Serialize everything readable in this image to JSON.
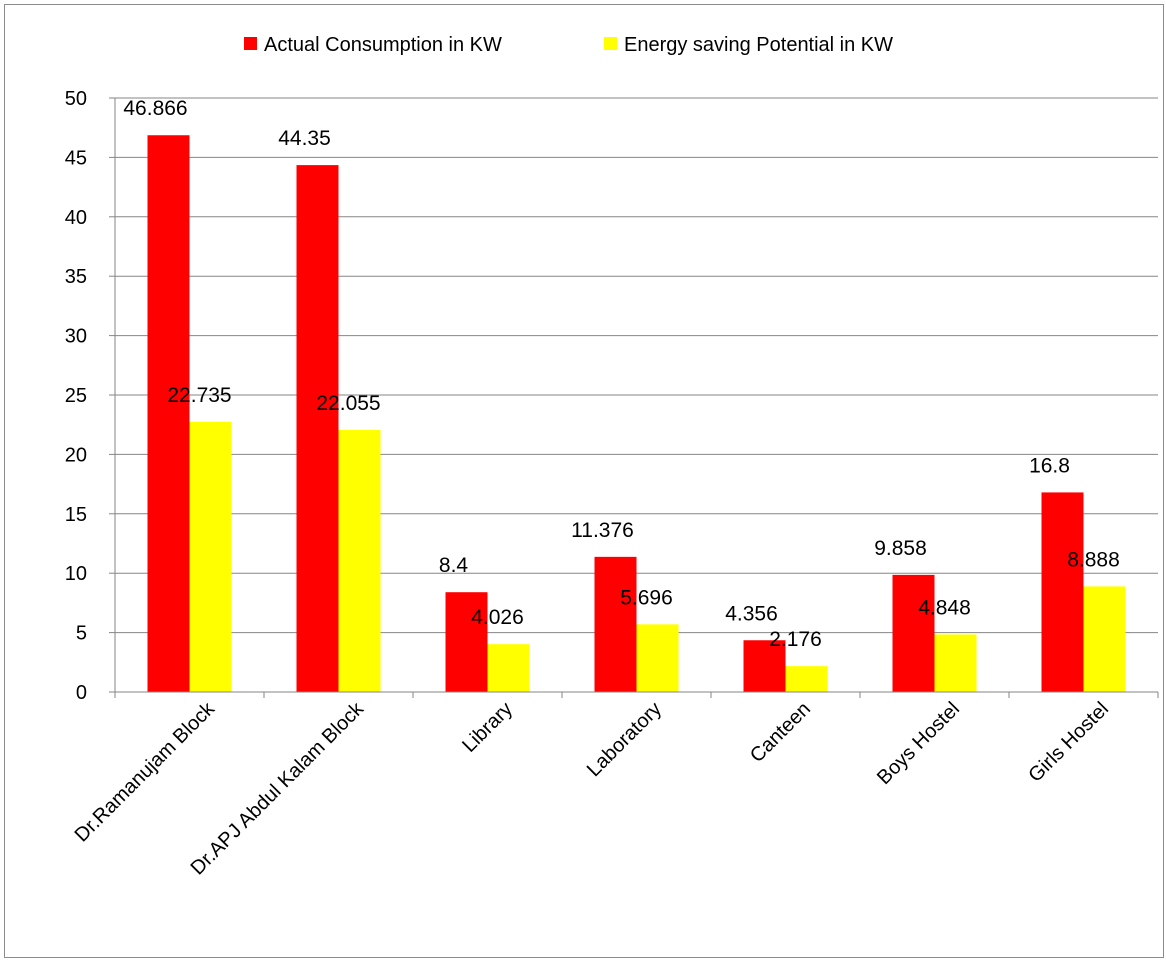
{
  "chart_data": {
    "type": "bar",
    "title": "",
    "xlabel": "",
    "ylabel": "",
    "ylim": [
      0,
      50
    ],
    "yticks": [
      0,
      5,
      10,
      15,
      20,
      25,
      30,
      35,
      40,
      45,
      50
    ],
    "grid": true,
    "legend_position": "top",
    "categories": [
      "Dr.Ramanujam Block",
      "Dr.APJ Abdul Kalam Block",
      "Library",
      "Laboratory",
      "Canteen",
      "Boys Hostel",
      "Girls Hostel"
    ],
    "series": [
      {
        "name": "Actual Consumption in KW",
        "color": "#ff0000",
        "values": [
          46.866,
          44.35,
          8.4,
          11.376,
          4.356,
          9.858,
          16.8
        ],
        "labels": [
          "46.866",
          "44.35",
          "8.4",
          "11.376",
          "4.356",
          "9.858",
          "16.8"
        ]
      },
      {
        "name": "Energy saving Potential in KW",
        "color": "#ffff00",
        "values": [
          22.735,
          22.055,
          4.026,
          5.696,
          2.176,
          4.848,
          8.888
        ],
        "labels": [
          "22.735",
          "22.055",
          "4.026",
          "5.696",
          "2.176",
          "4.848",
          "8.888"
        ]
      }
    ]
  }
}
